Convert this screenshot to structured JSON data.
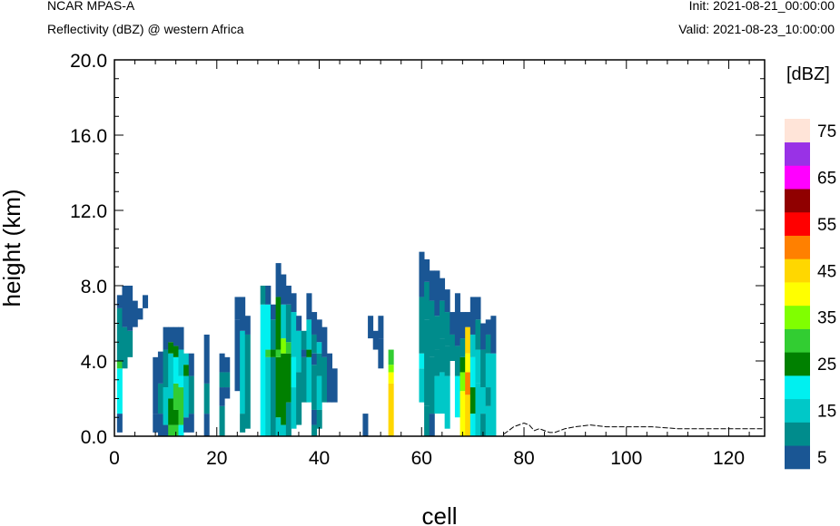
{
  "header": {
    "model": "NCAR MPAS-A",
    "field": "Reflectivity (dBZ) @ western Africa",
    "init": "Init: 2021-08-21_00:00:00",
    "valid": "Valid: 2021-08-23_10:00:00"
  },
  "chart_data": {
    "type": "heatmap",
    "title": "Reflectivity (dBZ) @ western Africa",
    "xlabel": "cell",
    "ylabel": "height (km)",
    "xlim": [
      0,
      127
    ],
    "ylim": [
      0,
      20
    ],
    "x_ticks": [
      "0",
      "20",
      "40",
      "60",
      "80",
      "100",
      "120"
    ],
    "y_ticks": [
      "0.0",
      "4.0",
      "8.0",
      "12.0",
      "16.0",
      "20.0"
    ],
    "colorbar": {
      "unit_label": "[dBZ]",
      "levels": [
        5,
        10,
        15,
        20,
        25,
        30,
        35,
        40,
        45,
        50,
        55,
        60,
        65,
        70,
        75
      ],
      "tick_labels": [
        "5",
        "15",
        "25",
        "35",
        "45",
        "55",
        "65",
        "75"
      ],
      "colors": [
        "#1a5694",
        "#008c8c",
        "#00c8c8",
        "#00f0f0",
        "#008000",
        "#32cd32",
        "#80ff00",
        "#ffff00",
        "#ffd700",
        "#ff8000",
        "#ff0000",
        "#900000",
        "#ff00ff",
        "#9932e6",
        "#ffe4d8"
      ]
    },
    "columns": [
      {
        "x": 1,
        "bands": [
          [
            0.2,
            1.2,
            5
          ],
          [
            1.2,
            3.6,
            20
          ],
          [
            3.6,
            4.0,
            30
          ],
          [
            4.0,
            6.8,
            10
          ],
          [
            6.8,
            7.5,
            5
          ]
        ]
      },
      {
        "x": 2,
        "bands": [
          [
            3.6,
            5.8,
            10
          ],
          [
            5.8,
            8.0,
            5
          ]
        ]
      },
      {
        "x": 3,
        "bands": [
          [
            4.2,
            5.6,
            10
          ],
          [
            5.6,
            8.0,
            5
          ]
        ]
      },
      {
        "x": 4,
        "bands": [
          [
            5.8,
            7.2,
            5
          ]
        ]
      },
      {
        "x": 5,
        "bands": [
          [
            6.2,
            6.8,
            5
          ]
        ]
      },
      {
        "x": 6,
        "bands": [
          [
            6.8,
            7.5,
            5
          ]
        ]
      },
      {
        "x": 8,
        "bands": [
          [
            0.2,
            1.2,
            5
          ],
          [
            1.2,
            4.2,
            5
          ]
        ]
      },
      {
        "x": 9,
        "bands": [
          [
            0,
            1.2,
            5
          ],
          [
            1.2,
            2.8,
            10
          ],
          [
            2.8,
            4.5,
            5
          ]
        ]
      },
      {
        "x": 10,
        "bands": [
          [
            0,
            0.6,
            5
          ],
          [
            0.6,
            2.6,
            15
          ],
          [
            2.6,
            4.6,
            10
          ],
          [
            4.6,
            5.8,
            5
          ]
        ]
      },
      {
        "x": 11,
        "bands": [
          [
            0,
            0.6,
            30
          ],
          [
            0.6,
            2.0,
            25
          ],
          [
            2.0,
            4.4,
            15
          ],
          [
            4.4,
            5.0,
            25
          ],
          [
            5.0,
            5.8,
            5
          ]
        ]
      },
      {
        "x": 12,
        "bands": [
          [
            0,
            0.6,
            30
          ],
          [
            0.6,
            1.4,
            25
          ],
          [
            1.4,
            2.8,
            30
          ],
          [
            2.8,
            4.2,
            20
          ],
          [
            4.2,
            4.8,
            25
          ],
          [
            4.8,
            5.8,
            5
          ]
        ]
      },
      {
        "x": 13,
        "bands": [
          [
            0,
            0.6,
            20
          ],
          [
            0.6,
            2.6,
            30
          ],
          [
            2.6,
            3.2,
            20
          ],
          [
            3.2,
            4.6,
            15
          ],
          [
            4.6,
            5.8,
            5
          ]
        ]
      },
      {
        "x": 14,
        "bands": [
          [
            0.2,
            1.0,
            5
          ],
          [
            1.0,
            3.2,
            15
          ],
          [
            3.2,
            3.8,
            25
          ],
          [
            3.8,
            4.4,
            15
          ]
        ]
      },
      {
        "x": 15,
        "bands": [
          [
            0.2,
            1.2,
            5
          ],
          [
            1.2,
            3.2,
            10
          ],
          [
            3.2,
            4.4,
            5
          ]
        ]
      },
      {
        "x": 18,
        "bands": [
          [
            0,
            1.2,
            5
          ],
          [
            1.2,
            2.8,
            10
          ],
          [
            2.8,
            5.4,
            5
          ]
        ]
      },
      {
        "x": 21,
        "bands": [
          [
            0,
            1.6,
            10
          ],
          [
            1.6,
            2.6,
            5
          ],
          [
            2.6,
            3.4,
            10
          ],
          [
            3.4,
            4.4,
            5
          ]
        ]
      },
      {
        "x": 22,
        "bands": [
          [
            2.0,
            2.6,
            5
          ],
          [
            2.6,
            3.4,
            10
          ],
          [
            3.4,
            4.2,
            5
          ]
        ]
      },
      {
        "x": 24,
        "bands": [
          [
            2.4,
            6.2,
            5
          ],
          [
            6.2,
            7.4,
            5
          ]
        ]
      },
      {
        "x": 25,
        "bands": [
          [
            0.2,
            1.2,
            10
          ],
          [
            1.2,
            5.6,
            15
          ],
          [
            5.6,
            7.4,
            5
          ]
        ]
      },
      {
        "x": 26,
        "bands": [
          [
            0.4,
            5.4,
            10
          ],
          [
            5.4,
            6.4,
            5
          ]
        ]
      },
      {
        "x": 29,
        "bands": [
          [
            0,
            7.0,
            20
          ],
          [
            7.0,
            8.0,
            10
          ]
        ]
      },
      {
        "x": 30,
        "bands": [
          [
            0,
            4.2,
            15
          ],
          [
            4.2,
            4.6,
            30
          ],
          [
            4.6,
            7.0,
            20
          ],
          [
            7.0,
            8.0,
            5
          ]
        ]
      },
      {
        "x": 31,
        "bands": [
          [
            0,
            4.2,
            10
          ],
          [
            4.2,
            4.6,
            25
          ],
          [
            4.6,
            6.2,
            10
          ],
          [
            6.2,
            7.0,
            5
          ]
        ]
      },
      {
        "x": 32,
        "bands": [
          [
            0,
            1.0,
            15
          ],
          [
            1.0,
            4.2,
            25
          ],
          [
            4.2,
            4.6,
            30
          ],
          [
            4.6,
            7.4,
            25
          ],
          [
            7.4,
            9.2,
            5
          ]
        ]
      },
      {
        "x": 33,
        "bands": [
          [
            0,
            0.6,
            15
          ],
          [
            0.6,
            4.4,
            25
          ],
          [
            4.4,
            5.2,
            35
          ],
          [
            5.2,
            7.0,
            15
          ],
          [
            7.0,
            8.6,
            5
          ]
        ]
      },
      {
        "x": 34,
        "bands": [
          [
            0,
            1.8,
            10
          ],
          [
            1.8,
            4.4,
            25
          ],
          [
            4.4,
            5.0,
            30
          ],
          [
            5.0,
            7.0,
            10
          ],
          [
            7.0,
            8.0,
            5
          ]
        ]
      },
      {
        "x": 35,
        "bands": [
          [
            0.4,
            2.6,
            15
          ],
          [
            2.6,
            4.2,
            20
          ],
          [
            4.2,
            6.6,
            15
          ],
          [
            6.6,
            7.6,
            5
          ]
        ]
      },
      {
        "x": 36,
        "bands": [
          [
            0.6,
            3.4,
            10
          ],
          [
            3.4,
            5.6,
            15
          ],
          [
            5.6,
            6.4,
            5
          ]
        ]
      },
      {
        "x": 37,
        "bands": [
          [
            1.8,
            4.2,
            10
          ],
          [
            4.2,
            4.6,
            5
          ],
          [
            4.6,
            5.6,
            10
          ]
        ]
      },
      {
        "x": 38,
        "bands": [
          [
            1.8,
            4.2,
            15
          ],
          [
            4.2,
            4.6,
            25
          ],
          [
            4.6,
            6.2,
            15
          ],
          [
            6.2,
            7.6,
            5
          ]
        ]
      },
      {
        "x": 39,
        "bands": [
          [
            0,
            0.6,
            10
          ],
          [
            0.6,
            1.4,
            5
          ],
          [
            1.4,
            3.8,
            10
          ],
          [
            3.8,
            4.4,
            5
          ],
          [
            4.4,
            5.4,
            10
          ],
          [
            5.4,
            6.6,
            5
          ]
        ]
      },
      {
        "x": 40,
        "bands": [
          [
            0.4,
            1.4,
            10
          ],
          [
            1.4,
            3.2,
            15
          ],
          [
            3.2,
            4.4,
            10
          ],
          [
            4.4,
            5.0,
            15
          ],
          [
            5.0,
            6.2,
            5
          ]
        ]
      },
      {
        "x": 41,
        "bands": [
          [
            1.8,
            4.2,
            10
          ],
          [
            4.2,
            5.8,
            5
          ]
        ]
      },
      {
        "x": 42,
        "bands": [
          [
            1.8,
            4.4,
            5
          ]
        ]
      },
      {
        "x": 43,
        "bands": [
          [
            1.8,
            3.6,
            5
          ]
        ]
      },
      {
        "x": 49,
        "bands": [
          [
            0,
            1.2,
            5
          ]
        ]
      },
      {
        "x": 50,
        "bands": [
          [
            5.2,
            6.4,
            5
          ]
        ]
      },
      {
        "x": 51,
        "bands": [
          [
            4.6,
            5.6,
            5
          ]
        ]
      },
      {
        "x": 52,
        "bands": [
          [
            3.6,
            5.2,
            5
          ],
          [
            5.2,
            6.4,
            5
          ]
        ]
      },
      {
        "x": 54,
        "bands": [
          [
            0,
            2.8,
            45
          ],
          [
            2.8,
            3.4,
            40
          ],
          [
            3.4,
            3.8,
            35
          ],
          [
            3.8,
            4.6,
            30
          ]
        ]
      },
      {
        "x": 60,
        "bands": [
          [
            1.8,
            3.6,
            15
          ],
          [
            3.6,
            4.4,
            20
          ],
          [
            4.4,
            7.4,
            10
          ],
          [
            7.4,
            9.8,
            5
          ]
        ]
      },
      {
        "x": 61,
        "bands": [
          [
            0,
            1.6,
            10
          ],
          [
            1.6,
            6.2,
            10
          ],
          [
            6.2,
            8.2,
            10
          ],
          [
            8.2,
            9.4,
            5
          ]
        ]
      },
      {
        "x": 62,
        "bands": [
          [
            0,
            1.2,
            5
          ],
          [
            1.2,
            4.2,
            10
          ],
          [
            4.2,
            7.2,
            10
          ],
          [
            7.2,
            8.8,
            5
          ]
        ]
      },
      {
        "x": 63,
        "bands": [
          [
            1.2,
            3.2,
            15
          ],
          [
            3.2,
            4.6,
            10
          ],
          [
            4.6,
            6.4,
            10
          ],
          [
            6.4,
            8.8,
            5
          ]
        ]
      },
      {
        "x": 64,
        "bands": [
          [
            1.2,
            3.4,
            15
          ],
          [
            3.4,
            5.2,
            10
          ],
          [
            5.2,
            7.2,
            10
          ],
          [
            7.2,
            8.4,
            5
          ]
        ]
      },
      {
        "x": 65,
        "bands": [
          [
            0.4,
            3.2,
            15
          ],
          [
            3.2,
            4.8,
            10
          ],
          [
            4.8,
            6.6,
            10
          ],
          [
            6.6,
            7.8,
            5
          ]
        ]
      },
      {
        "x": 66,
        "bands": [
          [
            4.0,
            5.4,
            10
          ],
          [
            5.4,
            6.6,
            5
          ]
        ]
      },
      {
        "x": 67,
        "bands": [
          [
            1.0,
            3.2,
            20
          ],
          [
            3.2,
            4.8,
            10
          ],
          [
            4.8,
            6.0,
            5
          ],
          [
            6.0,
            7.6,
            5
          ]
        ]
      },
      {
        "x": 68,
        "bands": [
          [
            0,
            2.4,
            40
          ],
          [
            2.4,
            3.4,
            35
          ],
          [
            3.4,
            4.2,
            25
          ],
          [
            4.2,
            5.2,
            10
          ],
          [
            5.2,
            6.6,
            5
          ]
        ]
      },
      {
        "x": 69,
        "bands": [
          [
            0,
            2.2,
            45
          ],
          [
            2.2,
            3.4,
            50
          ],
          [
            3.4,
            4.4,
            40
          ],
          [
            4.4,
            5.8,
            45
          ],
          [
            5.8,
            6.6,
            5
          ]
        ]
      },
      {
        "x": 70,
        "bands": [
          [
            0,
            1.2,
            20
          ],
          [
            1.2,
            2.6,
            25
          ],
          [
            2.6,
            4.2,
            20
          ],
          [
            4.2,
            5.4,
            15
          ],
          [
            5.4,
            7.4,
            5
          ]
        ]
      },
      {
        "x": 71,
        "bands": [
          [
            0,
            2.8,
            15
          ],
          [
            2.8,
            4.6,
            15
          ],
          [
            4.6,
            6.2,
            10
          ],
          [
            6.2,
            7.4,
            5
          ]
        ]
      },
      {
        "x": 72,
        "bands": [
          [
            0,
            1.2,
            10
          ],
          [
            1.2,
            2.6,
            15
          ],
          [
            2.6,
            4.6,
            10
          ],
          [
            4.6,
            6.0,
            5
          ]
        ]
      },
      {
        "x": 73,
        "bands": [
          [
            0,
            1.6,
            15
          ],
          [
            1.6,
            2.6,
            10
          ],
          [
            2.6,
            4.4,
            15
          ],
          [
            4.4,
            5.4,
            10
          ],
          [
            5.4,
            6.2,
            5
          ]
        ]
      },
      {
        "x": 74,
        "bands": [
          [
            0,
            4.4,
            15
          ],
          [
            4.4,
            6.4,
            5
          ]
        ]
      }
    ],
    "terrain": [
      [
        76,
        0.1
      ],
      [
        77,
        0.3
      ],
      [
        78,
        0.5
      ],
      [
        80,
        0.7
      ],
      [
        81,
        0.6
      ],
      [
        82,
        0.3
      ],
      [
        83,
        0.4
      ],
      [
        85,
        0.2
      ],
      [
        86,
        0.2
      ],
      [
        87,
        0.3
      ],
      [
        88,
        0.4
      ],
      [
        90,
        0.5
      ],
      [
        93,
        0.6
      ],
      [
        96,
        0.5
      ],
      [
        100,
        0.5
      ],
      [
        105,
        0.5
      ],
      [
        110,
        0.4
      ],
      [
        115,
        0.4
      ],
      [
        120,
        0.4
      ],
      [
        127,
        0.4
      ]
    ]
  }
}
